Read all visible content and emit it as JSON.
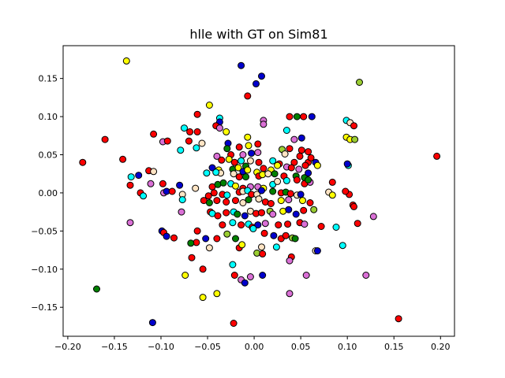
{
  "chart_data": {
    "type": "scatter",
    "title": "hlle with GT on Sim81",
    "xlabel": "",
    "ylabel": "",
    "xlim": [
      -0.205,
      0.215
    ],
    "ylim": [
      -0.188,
      0.193
    ],
    "xticks": [
      -0.2,
      -0.15,
      -0.1,
      -0.05,
      0.0,
      0.05,
      0.1,
      0.15,
      0.2
    ],
    "xtick_labels": [
      "−0.20",
      "−0.15",
      "−0.10",
      "−0.05",
      "0.00",
      "0.05",
      "0.10",
      "0.15",
      "0.20"
    ],
    "yticks": [
      -0.15,
      -0.1,
      -0.05,
      0.0,
      0.05,
      0.1,
      0.15
    ],
    "ytick_labels": [
      "−0.15",
      "−0.10",
      "−0.05",
      "0.00",
      "0.05",
      "0.10",
      "0.15"
    ],
    "grid": false,
    "legend": "none",
    "marker_edge_color": "#000000",
    "point_colors": {
      "r": "#ff0000",
      "b": "#0000cd",
      "y": "#ffff00",
      "c": "#00ffff",
      "g": "#008000",
      "v": "#da70d6",
      "k": "#9acd32",
      "w": "#ffe4c4"
    },
    "points": [
      [
        -0.137,
        0.173,
        "y"
      ],
      [
        -0.014,
        0.167,
        "b"
      ],
      [
        0.008,
        0.153,
        "b"
      ],
      [
        0.002,
        0.143,
        "b"
      ],
      [
        0.113,
        0.145,
        "k"
      ],
      [
        -0.007,
        0.127,
        "r"
      ],
      [
        -0.048,
        0.115,
        "y"
      ],
      [
        -0.061,
        0.103,
        "r"
      ],
      [
        -0.037,
        0.098,
        "c"
      ],
      [
        -0.037,
        0.093,
        "b"
      ],
      [
        -0.041,
        0.088,
        "r"
      ],
      [
        0.01,
        0.095,
        "v"
      ],
      [
        0.01,
        0.09,
        "v"
      ],
      [
        0.038,
        0.1,
        "r"
      ],
      [
        0.046,
        0.1,
        "g"
      ],
      [
        0.053,
        0.1,
        "r"
      ],
      [
        0.062,
        0.1,
        "b"
      ],
      [
        0.099,
        0.095,
        "c"
      ],
      [
        0.103,
        0.092,
        "w"
      ],
      [
        0.107,
        0.088,
        "r"
      ],
      [
        -0.075,
        0.085,
        "c"
      ],
      [
        -0.069,
        0.08,
        "r"
      ],
      [
        -0.061,
        0.08,
        "r"
      ],
      [
        -0.037,
        0.085,
        "v"
      ],
      [
        -0.03,
        0.08,
        "y"
      ],
      [
        -0.108,
        0.077,
        "r"
      ],
      [
        -0.16,
        0.07,
        "r"
      ],
      [
        -0.098,
        0.067,
        "v"
      ],
      [
        -0.093,
        0.068,
        "r"
      ],
      [
        -0.07,
        0.068,
        "r"
      ],
      [
        -0.062,
        0.059,
        "c"
      ],
      [
        -0.056,
        0.065,
        "w"
      ],
      [
        -0.028,
        0.065,
        "b"
      ],
      [
        -0.016,
        0.06,
        "r"
      ],
      [
        -0.007,
        0.073,
        "y"
      ],
      [
        -0.006,
        0.062,
        "y"
      ],
      [
        0.004,
        0.064,
        "r"
      ],
      [
        0.035,
        0.082,
        "c"
      ],
      [
        0.043,
        0.07,
        "v"
      ],
      [
        0.051,
        0.072,
        "b"
      ],
      [
        0.099,
        0.073,
        "y"
      ],
      [
        0.103,
        0.07,
        "y"
      ],
      [
        0.108,
        0.07,
        "k"
      ],
      [
        -0.079,
        0.056,
        "c"
      ],
      [
        -0.141,
        0.044,
        "r"
      ],
      [
        -0.184,
        0.04,
        "r"
      ],
      [
        -0.029,
        0.058,
        "g"
      ],
      [
        -0.025,
        0.05,
        "r"
      ],
      [
        -0.012,
        0.05,
        "v"
      ],
      [
        -0.003,
        0.052,
        "b"
      ],
      [
        0.004,
        0.053,
        "v"
      ],
      [
        0.03,
        0.057,
        "k"
      ],
      [
        0.038,
        0.058,
        "r"
      ],
      [
        0.051,
        0.056,
        "r"
      ],
      [
        0.058,
        0.054,
        "r"
      ],
      [
        0.049,
        0.048,
        "r"
      ],
      [
        0.196,
        0.048,
        "r"
      ],
      [
        -0.04,
        0.048,
        "v"
      ],
      [
        -0.035,
        0.043,
        "r"
      ],
      [
        -0.027,
        0.044,
        "y"
      ],
      [
        -0.021,
        0.04,
        "r"
      ],
      [
        -0.004,
        0.042,
        "w"
      ],
      [
        -0.014,
        0.042,
        "c"
      ],
      [
        -0.009,
        0.035,
        "g"
      ],
      [
        0.005,
        0.04,
        "r"
      ],
      [
        0.02,
        0.042,
        "c"
      ],
      [
        0.033,
        0.051,
        "w"
      ],
      [
        0.043,
        0.04,
        "r"
      ],
      [
        0.027,
        0.038,
        "r"
      ],
      [
        0.058,
        0.04,
        "r"
      ],
      [
        0.061,
        0.046,
        "r"
      ],
      [
        0.066,
        0.04,
        "b"
      ],
      [
        0.068,
        0.036,
        "y"
      ],
      [
        0.101,
        0.036,
        "c"
      ],
      [
        0.1,
        0.038,
        "b"
      ],
      [
        -0.045,
        0.033,
        "b"
      ],
      [
        -0.038,
        0.03,
        "y"
      ],
      [
        -0.036,
        0.026,
        "w"
      ],
      [
        -0.023,
        0.031,
        "g"
      ],
      [
        -0.017,
        0.033,
        "y"
      ],
      [
        -0.012,
        0.028,
        "b"
      ],
      [
        -0.007,
        0.03,
        "y"
      ],
      [
        0.003,
        0.027,
        "y"
      ],
      [
        0.01,
        0.032,
        "r"
      ],
      [
        0.018,
        0.03,
        "y"
      ],
      [
        0.025,
        0.036,
        "y"
      ],
      [
        0.035,
        0.034,
        "v"
      ],
      [
        0.04,
        0.033,
        "r"
      ],
      [
        0.048,
        0.031,
        "v"
      ],
      [
        0.055,
        0.036,
        "r"
      ],
      [
        -0.113,
        0.029,
        "r"
      ],
      [
        -0.108,
        0.028,
        "w"
      ],
      [
        -0.124,
        0.023,
        "b"
      ],
      [
        -0.132,
        0.021,
        "c"
      ],
      [
        -0.051,
        0.026,
        "c"
      ],
      [
        -0.041,
        0.027,
        "c"
      ],
      [
        -0.022,
        0.025,
        "w"
      ],
      [
        -0.016,
        0.021,
        "r"
      ],
      [
        -0.009,
        0.021,
        "g"
      ],
      [
        0.005,
        0.022,
        "r"
      ],
      [
        0.009,
        0.024,
        "y"
      ],
      [
        0.015,
        0.025,
        "w"
      ],
      [
        0.022,
        0.025,
        "g"
      ],
      [
        0.032,
        0.022,
        "r"
      ],
      [
        0.045,
        0.022,
        "g"
      ],
      [
        0.054,
        0.02,
        "g"
      ],
      [
        0.058,
        0.026,
        "b"
      ],
      [
        0.06,
        0.014,
        "v"
      ],
      [
        0.084,
        0.014,
        "r"
      ],
      [
        -0.133,
        0.01,
        "r"
      ],
      [
        -0.111,
        0.012,
        "v"
      ],
      [
        -0.098,
        0.012,
        "r"
      ],
      [
        -0.08,
        0.01,
        "b"
      ],
      [
        -0.063,
        0.006,
        "w"
      ],
      [
        -0.045,
        0.008,
        "r"
      ],
      [
        -0.039,
        0.011,
        "g"
      ],
      [
        -0.033,
        0.013,
        "g"
      ],
      [
        -0.025,
        0.012,
        "c"
      ],
      [
        -0.02,
        0.009,
        "y"
      ],
      [
        -0.012,
        0.006,
        "r"
      ],
      [
        -0.004,
        0.008,
        "v"
      ],
      [
        0.004,
        0.008,
        "v"
      ],
      [
        0.01,
        0.006,
        "y"
      ],
      [
        0.02,
        0.011,
        "c"
      ],
      [
        0.025,
        0.015,
        "w"
      ],
      [
        0.035,
        0.016,
        "c"
      ],
      [
        0.046,
        0.017,
        "r"
      ],
      [
        0.054,
        0.012,
        "r"
      ],
      [
        0.058,
        0.017,
        "g"
      ],
      [
        -0.122,
        0.0,
        "r"
      ],
      [
        -0.097,
        0.0,
        "v"
      ],
      [
        -0.094,
        0.002,
        "b"
      ],
      [
        -0.088,
        0.002,
        "r"
      ],
      [
        -0.077,
        -0.002,
        "w"
      ],
      [
        -0.049,
        -0.004,
        "r"
      ],
      [
        -0.043,
        0.0,
        "r"
      ],
      [
        -0.034,
        -0.002,
        "r"
      ],
      [
        -0.029,
        -0.003,
        "c"
      ],
      [
        -0.016,
        0.001,
        "r"
      ],
      [
        -0.012,
        0.002,
        "w"
      ],
      [
        -0.007,
        0.003,
        "c"
      ],
      [
        -0.003,
        -0.002,
        "r"
      ],
      [
        0.003,
        -0.002,
        "w"
      ],
      [
        0.008,
        0.003,
        "b"
      ],
      [
        0.02,
        0.002,
        "g"
      ],
      [
        0.029,
        0.0,
        "r"
      ],
      [
        0.034,
        0.001,
        "g"
      ],
      [
        0.039,
        -0.001,
        "r"
      ],
      [
        0.046,
        -0.003,
        "w"
      ],
      [
        0.05,
        -0.002,
        "b"
      ],
      [
        0.08,
        0.001,
        "w"
      ],
      [
        0.084,
        -0.003,
        "y"
      ],
      [
        0.102,
        -0.002,
        "r"
      ],
      [
        0.098,
        0.002,
        "r"
      ],
      [
        -0.119,
        -0.004,
        "c"
      ],
      [
        -0.077,
        -0.009,
        "c"
      ],
      [
        -0.054,
        -0.01,
        "r"
      ],
      [
        -0.048,
        -0.013,
        "g"
      ],
      [
        -0.04,
        -0.01,
        "r"
      ],
      [
        -0.03,
        -0.012,
        "r"
      ],
      [
        -0.02,
        -0.01,
        "r"
      ],
      [
        -0.012,
        -0.013,
        "w"
      ],
      [
        -0.006,
        -0.009,
        "g"
      ],
      [
        0.005,
        -0.008,
        "w"
      ],
      [
        0.012,
        -0.012,
        "r"
      ],
      [
        0.018,
        -0.014,
        "r"
      ],
      [
        0.029,
        -0.01,
        "y"
      ],
      [
        0.037,
        -0.009,
        "v"
      ],
      [
        0.052,
        -0.01,
        "y"
      ],
      [
        0.06,
        -0.013,
        "r"
      ],
      [
        0.064,
        -0.022,
        "k"
      ],
      [
        0.106,
        -0.016,
        "r"
      ],
      [
        0.107,
        -0.018,
        "r"
      ],
      [
        -0.078,
        -0.025,
        "v"
      ],
      [
        -0.047,
        -0.025,
        "r"
      ],
      [
        -0.045,
        -0.027,
        "c"
      ],
      [
        -0.039,
        -0.03,
        "r"
      ],
      [
        -0.03,
        -0.026,
        "r"
      ],
      [
        -0.022,
        -0.025,
        "c"
      ],
      [
        -0.018,
        -0.028,
        "g"
      ],
      [
        -0.01,
        -0.03,
        "b"
      ],
      [
        -0.004,
        -0.024,
        "w"
      ],
      [
        0.002,
        -0.027,
        "r"
      ],
      [
        0.008,
        -0.026,
        "r"
      ],
      [
        0.017,
        -0.024,
        "k"
      ],
      [
        0.02,
        -0.028,
        "v"
      ],
      [
        0.031,
        -0.024,
        "y"
      ],
      [
        0.037,
        -0.022,
        "b"
      ],
      [
        0.045,
        -0.028,
        "b"
      ],
      [
        0.053,
        -0.023,
        "r"
      ],
      [
        -0.133,
        -0.039,
        "v"
      ],
      [
        -0.099,
        -0.05,
        "b"
      ],
      [
        -0.034,
        -0.042,
        "r"
      ],
      [
        -0.023,
        -0.039,
        "c"
      ],
      [
        -0.014,
        -0.042,
        "r"
      ],
      [
        -0.006,
        -0.041,
        "c"
      ],
      [
        -0.002,
        -0.045,
        "r"
      ],
      [
        0.004,
        -0.042,
        "b"
      ],
      [
        0.012,
        -0.04,
        "v"
      ],
      [
        0.026,
        -0.042,
        "r"
      ],
      [
        0.036,
        -0.041,
        "r"
      ],
      [
        0.049,
        -0.039,
        "r"
      ],
      [
        0.054,
        -0.041,
        "v"
      ],
      [
        0.072,
        -0.044,
        "r"
      ],
      [
        0.088,
        -0.045,
        "c"
      ],
      [
        0.111,
        -0.04,
        "r"
      ],
      [
        0.128,
        -0.031,
        "v"
      ],
      [
        -0.097,
        -0.052,
        "r"
      ],
      [
        -0.094,
        -0.057,
        "b"
      ],
      [
        -0.086,
        -0.059,
        "r"
      ],
      [
        -0.061,
        -0.05,
        "r"
      ],
      [
        -0.052,
        -0.06,
        "b"
      ],
      [
        -0.04,
        -0.06,
        "r"
      ],
      [
        -0.029,
        -0.054,
        "k"
      ],
      [
        -0.02,
        -0.06,
        "g"
      ],
      [
        -0.001,
        -0.047,
        "c"
      ],
      [
        0.011,
        -0.053,
        "r"
      ],
      [
        0.021,
        -0.056,
        "b"
      ],
      [
        0.029,
        -0.06,
        "r"
      ],
      [
        0.034,
        -0.056,
        "r"
      ],
      [
        0.041,
        -0.059,
        "k"
      ],
      [
        0.044,
        -0.06,
        "g"
      ],
      [
        -0.062,
        -0.065,
        "r"
      ],
      [
        -0.068,
        -0.066,
        "g"
      ],
      [
        -0.048,
        -0.072,
        "w"
      ],
      [
        -0.016,
        -0.072,
        "r"
      ],
      [
        -0.013,
        -0.068,
        "y"
      ],
      [
        0.008,
        -0.071,
        "w"
      ],
      [
        0.024,
        -0.071,
        "c"
      ],
      [
        0.066,
        -0.076,
        "w"
      ],
      [
        0.068,
        -0.076,
        "b"
      ],
      [
        0.095,
        -0.069,
        "c"
      ],
      [
        -0.067,
        -0.085,
        "r"
      ],
      [
        0.003,
        -0.079,
        "k"
      ],
      [
        0.009,
        -0.08,
        "r"
      ],
      [
        0.04,
        -0.084,
        "r"
      ],
      [
        0.038,
        -0.089,
        "v"
      ],
      [
        -0.023,
        -0.094,
        "c"
      ],
      [
        -0.055,
        -0.1,
        "r"
      ],
      [
        -0.021,
        -0.108,
        "r"
      ],
      [
        0.009,
        -0.108,
        "b"
      ],
      [
        0.056,
        -0.108,
        "v"
      ],
      [
        -0.074,
        -0.108,
        "y"
      ],
      [
        -0.014,
        -0.114,
        "v"
      ],
      [
        -0.004,
        -0.11,
        "v"
      ],
      [
        -0.01,
        -0.118,
        "b"
      ],
      [
        0.12,
        -0.108,
        "v"
      ],
      [
        -0.04,
        -0.132,
        "y"
      ],
      [
        -0.055,
        -0.137,
        "y"
      ],
      [
        0.038,
        -0.132,
        "v"
      ],
      [
        -0.169,
        -0.126,
        "g"
      ],
      [
        0.155,
        -0.165,
        "r"
      ],
      [
        -0.109,
        -0.17,
        "b"
      ],
      [
        -0.022,
        -0.171,
        "r"
      ]
    ]
  }
}
